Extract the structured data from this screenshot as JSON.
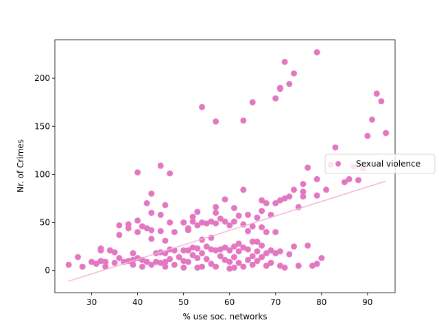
{
  "chart_data": {
    "type": "scatter",
    "title": "",
    "xlabel": "% use soc. networks",
    "ylabel": "Nr. of Crimes",
    "xlim": [
      22,
      96
    ],
    "ylim": [
      -23,
      240
    ],
    "xticks": [
      30,
      40,
      50,
      60,
      70,
      80,
      90
    ],
    "yticks": [
      0,
      50,
      100,
      150,
      200
    ],
    "grid": false,
    "legend_position": "center-right",
    "series": [
      {
        "name": "Sexual violence",
        "color": "#e377c2",
        "points": [
          [
            25,
            6
          ],
          [
            27,
            14
          ],
          [
            28,
            4
          ],
          [
            30,
            9
          ],
          [
            31,
            7
          ],
          [
            32,
            23
          ],
          [
            32,
            21
          ],
          [
            32,
            10
          ],
          [
            33,
            9
          ],
          [
            33,
            4
          ],
          [
            34,
            21
          ],
          [
            35,
            19
          ],
          [
            35,
            8
          ],
          [
            36,
            47
          ],
          [
            36,
            37
          ],
          [
            36,
            13
          ],
          [
            37,
            9
          ],
          [
            38,
            48
          ],
          [
            38,
            44
          ],
          [
            38,
            10
          ],
          [
            39,
            6
          ],
          [
            39,
            18
          ],
          [
            39,
            11
          ],
          [
            40,
            102
          ],
          [
            40,
            52
          ],
          [
            40,
            40
          ],
          [
            40,
            13
          ],
          [
            41,
            46
          ],
          [
            41,
            11
          ],
          [
            41,
            4
          ],
          [
            42,
            70
          ],
          [
            42,
            44
          ],
          [
            42,
            9
          ],
          [
            43,
            80
          ],
          [
            43,
            60
          ],
          [
            43,
            42
          ],
          [
            43,
            33
          ],
          [
            43,
            6
          ],
          [
            44,
            18
          ],
          [
            44,
            9
          ],
          [
            45,
            109
          ],
          [
            45,
            58
          ],
          [
            45,
            41
          ],
          [
            45,
            19
          ],
          [
            45,
            8
          ],
          [
            46,
            68
          ],
          [
            46,
            31
          ],
          [
            46,
            18
          ],
          [
            46,
            9
          ],
          [
            46,
            4
          ],
          [
            47,
            101
          ],
          [
            47,
            50
          ],
          [
            47,
            22
          ],
          [
            47,
            12
          ],
          [
            48,
            40
          ],
          [
            48,
            21
          ],
          [
            48,
            6
          ],
          [
            49,
            14
          ],
          [
            50,
            50
          ],
          [
            50,
            21
          ],
          [
            50,
            10
          ],
          [
            50,
            3
          ],
          [
            51,
            44
          ],
          [
            51,
            42
          ],
          [
            51,
            21
          ],
          [
            51,
            9
          ],
          [
            52,
            56
          ],
          [
            52,
            51
          ],
          [
            52,
            24
          ],
          [
            52,
            16
          ],
          [
            53,
            61
          ],
          [
            53,
            47
          ],
          [
            53,
            23
          ],
          [
            53,
            13
          ],
          [
            53,
            3
          ],
          [
            54,
            170
          ],
          [
            54,
            50
          ],
          [
            54,
            32
          ],
          [
            54,
            18
          ],
          [
            54,
            4
          ],
          [
            55,
            49
          ],
          [
            55,
            25
          ],
          [
            55,
            12
          ],
          [
            56,
            51
          ],
          [
            56,
            34
          ],
          [
            56,
            22
          ],
          [
            56,
            7
          ],
          [
            57,
            155
          ],
          [
            57,
            66
          ],
          [
            57,
            60
          ],
          [
            57,
            49
          ],
          [
            57,
            21
          ],
          [
            57,
            4
          ],
          [
            58,
            54
          ],
          [
            58,
            22
          ],
          [
            58,
            15
          ],
          [
            59,
            74
          ],
          [
            59,
            51
          ],
          [
            59,
            24
          ],
          [
            59,
            11
          ],
          [
            60,
            47
          ],
          [
            60,
            21
          ],
          [
            60,
            9
          ],
          [
            60,
            2
          ],
          [
            61,
            65
          ],
          [
            61,
            51
          ],
          [
            61,
            25
          ],
          [
            61,
            14
          ],
          [
            61,
            3
          ],
          [
            62,
            57
          ],
          [
            62,
            28
          ],
          [
            62,
            20
          ],
          [
            62,
            8
          ],
          [
            63,
            156
          ],
          [
            63,
            84
          ],
          [
            63,
            48
          ],
          [
            63,
            24
          ],
          [
            63,
            4
          ],
          [
            64,
            58
          ],
          [
            64,
            41
          ],
          [
            64,
            22
          ],
          [
            64,
            11
          ],
          [
            65,
            175
          ],
          [
            65,
            46
          ],
          [
            65,
            30
          ],
          [
            65,
            15
          ],
          [
            65,
            6
          ],
          [
            66,
            55
          ],
          [
            66,
            30
          ],
          [
            66,
            20
          ],
          [
            66,
            10
          ],
          [
            67,
            73
          ],
          [
            67,
            62
          ],
          [
            67,
            45
          ],
          [
            67,
            26
          ],
          [
            67,
            14
          ],
          [
            68,
            70
          ],
          [
            68,
            40
          ],
          [
            68,
            18
          ],
          [
            68,
            5
          ],
          [
            69,
            58
          ],
          [
            69,
            21
          ],
          [
            69,
            8
          ],
          [
            70,
            179
          ],
          [
            70,
            70
          ],
          [
            70,
            40
          ],
          [
            70,
            18
          ],
          [
            71,
            190
          ],
          [
            71,
            189
          ],
          [
            71,
            73
          ],
          [
            71,
            20
          ],
          [
            71,
            5
          ],
          [
            72,
            217
          ],
          [
            72,
            75
          ],
          [
            72,
            3
          ],
          [
            73,
            194
          ],
          [
            73,
            77
          ],
          [
            73,
            17
          ],
          [
            74,
            205
          ],
          [
            74,
            84
          ],
          [
            74,
            25
          ],
          [
            75,
            5
          ],
          [
            75,
            66
          ],
          [
            76,
            90
          ],
          [
            76,
            82
          ],
          [
            76,
            77
          ],
          [
            77,
            26
          ],
          [
            77,
            107
          ],
          [
            78,
            5
          ],
          [
            79,
            227
          ],
          [
            79,
            95
          ],
          [
            79,
            78
          ],
          [
            79,
            7
          ],
          [
            80,
            13
          ],
          [
            81,
            84
          ],
          [
            82,
            110
          ],
          [
            83,
            128
          ],
          [
            85,
            92
          ],
          [
            86,
            95
          ],
          [
            87,
            108
          ],
          [
            88,
            94
          ],
          [
            89,
            106
          ],
          [
            90,
            140
          ],
          [
            91,
            157
          ],
          [
            92,
            184
          ],
          [
            93,
            176
          ],
          [
            94,
            143
          ]
        ],
        "trendline": {
          "color": "#f4b6d9",
          "x": [
            25,
            94
          ],
          "y": [
            -11,
            93
          ]
        }
      }
    ]
  }
}
